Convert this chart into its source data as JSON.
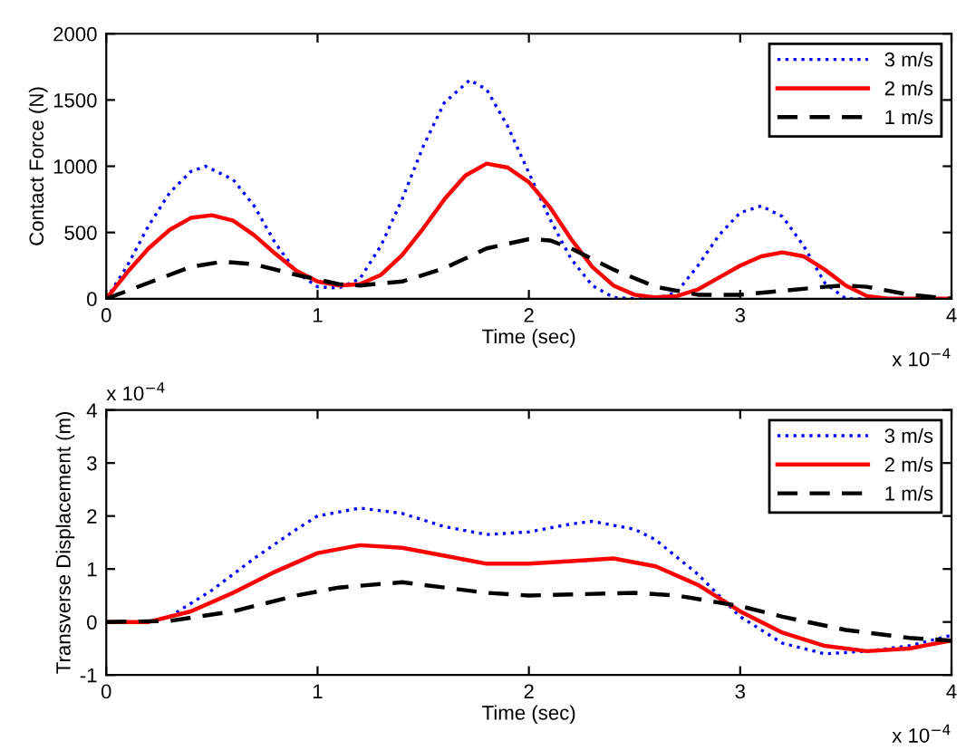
{
  "chart_data": [
    {
      "type": "line",
      "xlabel": "Time (sec)",
      "ylabel": "Contact Force (N)",
      "xlim": [
        0,
        4
      ],
      "xticks": [
        0,
        1,
        2,
        3,
        4
      ],
      "ylim": [
        0,
        2000
      ],
      "yticks": [
        0,
        500,
        1000,
        1500,
        2000
      ],
      "grid": false,
      "legend": "top right",
      "annotations": [
        "x 10$^{−4}$"
      ],
      "series": [
        {
          "name": "3 m/s",
          "color": "#0000ff",
          "line_style": "dotted",
          "x": [
            0,
            0.1,
            0.2,
            0.3,
            0.4,
            0.47,
            0.6,
            0.7,
            0.8,
            0.9,
            1.0,
            1.1,
            1.2,
            1.3,
            1.4,
            1.5,
            1.6,
            1.72,
            1.8,
            1.9,
            2.0,
            2.1,
            2.2,
            2.3,
            2.4,
            2.5,
            2.6,
            2.7,
            2.8,
            2.9,
            3.0,
            3.1,
            3.2,
            3.3,
            3.4,
            3.5,
            3.6,
            4.0
          ],
          "values": [
            0,
            250,
            550,
            800,
            960,
            1000,
            900,
            700,
            420,
            200,
            90,
            80,
            150,
            400,
            750,
            1150,
            1480,
            1650,
            1580,
            1300,
            950,
            600,
            300,
            100,
            10,
            0,
            0,
            50,
            250,
            480,
            650,
            700,
            620,
            400,
            120,
            0,
            0,
            0
          ]
        },
        {
          "name": "2 m/s",
          "color": "#ff0000",
          "line_style": "solid",
          "x": [
            0,
            0.1,
            0.2,
            0.3,
            0.4,
            0.5,
            0.6,
            0.7,
            0.8,
            0.9,
            1.0,
            1.1,
            1.2,
            1.3,
            1.4,
            1.5,
            1.6,
            1.7,
            1.8,
            1.9,
            2.0,
            2.1,
            2.2,
            2.3,
            2.4,
            2.5,
            2.6,
            2.7,
            2.8,
            2.9,
            3.0,
            3.1,
            3.2,
            3.3,
            3.4,
            3.5,
            3.6,
            3.7,
            4.0
          ],
          "values": [
            0,
            200,
            380,
            520,
            610,
            630,
            590,
            480,
            340,
            210,
            130,
            100,
            110,
            180,
            330,
            530,
            750,
            930,
            1020,
            990,
            880,
            690,
            450,
            240,
            100,
            30,
            10,
            20,
            70,
            160,
            250,
            320,
            350,
            320,
            220,
            100,
            20,
            0,
            0
          ]
        },
        {
          "name": "1 m/s",
          "color": "#000000",
          "line_style": "dashed",
          "x": [
            0,
            0.2,
            0.4,
            0.55,
            0.7,
            0.9,
            1.1,
            1.2,
            1.4,
            1.6,
            1.8,
            2.0,
            2.1,
            2.2,
            2.4,
            2.6,
            2.8,
            3.0,
            3.2,
            3.4,
            3.5,
            3.6,
            3.8,
            4.0
          ],
          "values": [
            0,
            120,
            240,
            280,
            260,
            180,
            110,
            100,
            130,
            230,
            380,
            450,
            440,
            380,
            220,
            90,
            30,
            30,
            60,
            90,
            100,
            90,
            30,
            0
          ]
        }
      ]
    },
    {
      "type": "line",
      "xlabel": "Time (sec)",
      "ylabel": "Transverse Displacement (m)",
      "xlim": [
        0,
        4
      ],
      "xticks": [
        0,
        1,
        2,
        3,
        4
      ],
      "ylim": [
        -1,
        4
      ],
      "yticks": [
        {
          "value": -1,
          "label": "-1"
        },
        0,
        1,
        2,
        3,
        4
      ],
      "grid": false,
      "legend": "top right",
      "annotations": [
        "x 10$^{−4}$",
        "x 10$^{−4}$"
      ],
      "series": [
        {
          "name": "3 m/s",
          "color": "#0000ff",
          "line_style": "dotted",
          "x": [
            0,
            0.2,
            0.3,
            0.5,
            0.7,
            0.9,
            1.0,
            1.2,
            1.4,
            1.6,
            1.8,
            2.0,
            2.2,
            2.3,
            2.5,
            2.6,
            2.8,
            3.0,
            3.2,
            3.4,
            3.6,
            3.8,
            4.0
          ],
          "values": [
            0,
            0,
            0.1,
            0.6,
            1.2,
            1.75,
            2.0,
            2.15,
            2.05,
            1.8,
            1.65,
            1.7,
            1.85,
            1.9,
            1.75,
            1.55,
            0.9,
            0.1,
            -0.4,
            -0.6,
            -0.55,
            -0.45,
            -0.25
          ]
        },
        {
          "name": "2 m/s",
          "color": "#ff0000",
          "line_style": "solid",
          "x": [
            0,
            0.2,
            0.4,
            0.6,
            0.8,
            1.0,
            1.2,
            1.4,
            1.6,
            1.8,
            2.0,
            2.2,
            2.4,
            2.6,
            2.8,
            3.0,
            3.2,
            3.4,
            3.6,
            3.8,
            4.0
          ],
          "values": [
            0,
            0,
            0.2,
            0.55,
            0.95,
            1.3,
            1.45,
            1.4,
            1.25,
            1.1,
            1.1,
            1.15,
            1.2,
            1.05,
            0.7,
            0.2,
            -0.2,
            -0.45,
            -0.55,
            -0.5,
            -0.35
          ]
        },
        {
          "name": "1 m/s",
          "color": "#000000",
          "line_style": "dashed",
          "x": [
            0,
            0.3,
            0.6,
            0.9,
            1.1,
            1.4,
            1.6,
            1.8,
            2.0,
            2.2,
            2.5,
            2.7,
            3.0,
            3.2,
            3.5,
            3.8,
            4.0
          ],
          "values": [
            0,
            0.02,
            0.2,
            0.5,
            0.65,
            0.75,
            0.65,
            0.55,
            0.5,
            0.52,
            0.55,
            0.5,
            0.3,
            0.1,
            -0.15,
            -0.3,
            -0.35
          ]
        }
      ]
    }
  ]
}
